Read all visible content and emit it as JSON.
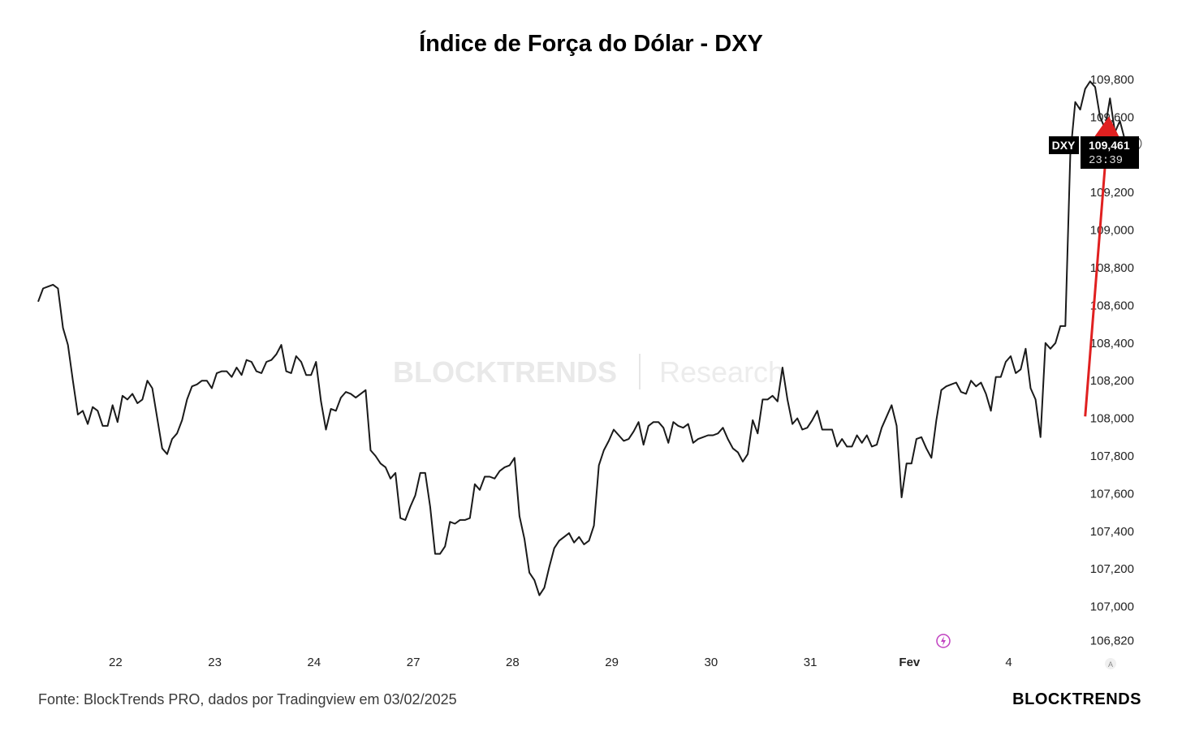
{
  "chart_data": {
    "type": "line",
    "title": "Índice de Força do Dólar - DXY",
    "symbol": "DXY",
    "last_price": "109,461",
    "countdown": "23:39",
    "watermark": {
      "brand": "BLOCKTRENDS",
      "suffix": "Research"
    },
    "y_ticks": [
      "109,800",
      "109,600",
      "109,200",
      "109,000",
      "108,800",
      "108,600",
      "108,400",
      "108,200",
      "108,000",
      "107,800",
      "107,600",
      "107,400",
      "107,200",
      "107,000",
      "106,820"
    ],
    "y_range": [
      106.82,
      109.8
    ],
    "x_ticks": [
      "22",
      "23",
      "24",
      "27",
      "28",
      "29",
      "30",
      "31",
      "Fev",
      "4"
    ],
    "x_index_range": [
      21.35,
      33.1
    ],
    "line_color": "#1a1a1a",
    "arrow_color": "#e02020",
    "series": [
      {
        "values": [
          [
            21.35,
            108.62
          ],
          [
            21.4,
            108.69
          ],
          [
            21.45,
            108.7
          ],
          [
            21.5,
            108.71
          ],
          [
            21.55,
            108.69
          ],
          [
            21.6,
            108.48
          ],
          [
            21.65,
            108.39
          ],
          [
            21.7,
            108.2
          ],
          [
            21.75,
            108.02
          ],
          [
            21.8,
            108.04
          ],
          [
            21.85,
            107.97
          ],
          [
            21.9,
            108.06
          ],
          [
            21.95,
            108.04
          ],
          [
            22.0,
            107.96
          ],
          [
            22.05,
            107.96
          ],
          [
            22.1,
            108.07
          ],
          [
            22.15,
            107.98
          ],
          [
            22.2,
            108.12
          ],
          [
            22.25,
            108.1
          ],
          [
            22.3,
            108.13
          ],
          [
            22.35,
            108.08
          ],
          [
            22.4,
            108.1
          ],
          [
            22.45,
            108.2
          ],
          [
            22.5,
            108.16
          ],
          [
            22.55,
            108.0
          ],
          [
            22.6,
            107.84
          ],
          [
            22.65,
            107.81
          ],
          [
            22.7,
            107.89
          ],
          [
            22.75,
            107.92
          ],
          [
            22.8,
            107.99
          ],
          [
            22.85,
            108.1
          ],
          [
            22.9,
            108.17
          ],
          [
            22.95,
            108.18
          ],
          [
            23.0,
            108.2
          ],
          [
            23.05,
            108.2
          ],
          [
            23.1,
            108.16
          ],
          [
            23.15,
            108.24
          ],
          [
            23.2,
            108.25
          ],
          [
            23.25,
            108.25
          ],
          [
            23.3,
            108.22
          ],
          [
            23.35,
            108.27
          ],
          [
            23.4,
            108.23
          ],
          [
            23.45,
            108.31
          ],
          [
            23.5,
            108.3
          ],
          [
            23.55,
            108.25
          ],
          [
            23.6,
            108.24
          ],
          [
            23.65,
            108.3
          ],
          [
            23.7,
            108.31
          ],
          [
            23.75,
            108.34
          ],
          [
            23.8,
            108.39
          ],
          [
            23.85,
            108.25
          ],
          [
            23.9,
            108.24
          ],
          [
            23.95,
            108.33
          ],
          [
            24.0,
            108.3
          ],
          [
            24.05,
            108.23
          ],
          [
            24.1,
            108.23
          ],
          [
            24.15,
            108.3
          ],
          [
            24.2,
            108.09
          ],
          [
            24.25,
            107.94
          ],
          [
            24.3,
            108.05
          ],
          [
            24.35,
            108.04
          ],
          [
            24.4,
            108.11
          ],
          [
            24.45,
            108.14
          ],
          [
            24.5,
            108.13
          ],
          [
            24.55,
            108.11
          ],
          [
            24.6,
            108.13
          ],
          [
            24.65,
            108.15
          ],
          [
            24.7,
            107.83
          ],
          [
            24.75,
            107.8
          ],
          [
            24.8,
            107.76
          ],
          [
            24.85,
            107.74
          ],
          [
            24.9,
            107.68
          ],
          [
            24.95,
            107.71
          ],
          [
            25.0,
            107.47
          ],
          [
            25.05,
            107.46
          ],
          [
            25.1,
            107.53
          ],
          [
            25.15,
            107.59
          ],
          [
            25.2,
            107.71
          ],
          [
            25.25,
            107.71
          ],
          [
            25.3,
            107.53
          ],
          [
            25.35,
            107.28
          ],
          [
            25.4,
            107.28
          ],
          [
            25.45,
            107.32
          ],
          [
            25.5,
            107.45
          ],
          [
            25.55,
            107.44
          ],
          [
            25.6,
            107.46
          ],
          [
            25.65,
            107.46
          ],
          [
            25.7,
            107.47
          ],
          [
            25.75,
            107.65
          ],
          [
            25.8,
            107.62
          ],
          [
            25.85,
            107.69
          ],
          [
            25.9,
            107.69
          ],
          [
            25.95,
            107.68
          ],
          [
            26.0,
            107.72
          ],
          [
            26.05,
            107.74
          ],
          [
            26.1,
            107.75
          ],
          [
            26.15,
            107.79
          ],
          [
            26.2,
            107.48
          ],
          [
            26.25,
            107.36
          ],
          [
            26.3,
            107.18
          ],
          [
            26.35,
            107.14
          ],
          [
            26.4,
            107.06
          ],
          [
            26.45,
            107.1
          ],
          [
            26.5,
            107.21
          ],
          [
            26.55,
            107.31
          ],
          [
            26.6,
            107.35
          ],
          [
            26.65,
            107.37
          ],
          [
            26.7,
            107.39
          ],
          [
            26.75,
            107.34
          ],
          [
            26.8,
            107.37
          ],
          [
            26.85,
            107.33
          ],
          [
            26.9,
            107.35
          ],
          [
            26.95,
            107.43
          ],
          [
            27.0,
            107.75
          ],
          [
            27.05,
            107.83
          ],
          [
            27.1,
            107.88
          ],
          [
            27.15,
            107.94
          ],
          [
            27.2,
            107.91
          ],
          [
            27.25,
            107.88
          ],
          [
            27.3,
            107.89
          ],
          [
            27.35,
            107.93
          ],
          [
            27.4,
            107.98
          ],
          [
            27.45,
            107.86
          ],
          [
            27.5,
            107.96
          ],
          [
            27.55,
            107.98
          ],
          [
            27.6,
            107.98
          ],
          [
            27.65,
            107.95
          ],
          [
            27.7,
            107.87
          ],
          [
            27.75,
            107.98
          ],
          [
            27.8,
            107.96
          ],
          [
            27.85,
            107.95
          ],
          [
            27.9,
            107.97
          ],
          [
            27.95,
            107.87
          ],
          [
            28.0,
            107.89
          ],
          [
            28.05,
            107.9
          ],
          [
            28.1,
            107.91
          ],
          [
            28.15,
            107.91
          ],
          [
            28.2,
            107.92
          ],
          [
            28.25,
            107.95
          ],
          [
            28.3,
            107.89
          ],
          [
            28.35,
            107.84
          ],
          [
            28.4,
            107.82
          ],
          [
            28.45,
            107.77
          ],
          [
            28.5,
            107.81
          ],
          [
            28.55,
            107.99
          ],
          [
            28.6,
            107.92
          ],
          [
            28.65,
            108.1
          ],
          [
            28.7,
            108.1
          ],
          [
            28.75,
            108.12
          ],
          [
            28.8,
            108.09
          ],
          [
            28.85,
            108.27
          ],
          [
            28.9,
            108.1
          ],
          [
            28.95,
            107.97
          ],
          [
            29.0,
            108.0
          ],
          [
            29.05,
            107.94
          ],
          [
            29.1,
            107.95
          ],
          [
            29.15,
            107.99
          ],
          [
            29.2,
            108.04
          ],
          [
            29.25,
            107.94
          ],
          [
            29.3,
            107.94
          ],
          [
            29.35,
            107.94
          ],
          [
            29.4,
            107.85
          ],
          [
            29.45,
            107.89
          ],
          [
            29.5,
            107.85
          ],
          [
            29.55,
            107.85
          ],
          [
            29.6,
            107.91
          ],
          [
            29.65,
            107.87
          ],
          [
            29.7,
            107.91
          ],
          [
            29.75,
            107.85
          ],
          [
            29.8,
            107.86
          ],
          [
            29.85,
            107.95
          ],
          [
            29.9,
            108.01
          ],
          [
            29.95,
            108.07
          ],
          [
            30.0,
            107.96
          ],
          [
            30.05,
            107.58
          ],
          [
            30.1,
            107.76
          ],
          [
            30.15,
            107.76
          ],
          [
            30.2,
            107.89
          ],
          [
            30.25,
            107.9
          ],
          [
            30.3,
            107.84
          ],
          [
            30.35,
            107.79
          ],
          [
            30.4,
            107.99
          ],
          [
            30.45,
            108.15
          ],
          [
            30.5,
            108.17
          ],
          [
            30.55,
            108.18
          ],
          [
            30.6,
            108.19
          ],
          [
            30.65,
            108.14
          ],
          [
            30.7,
            108.13
          ],
          [
            30.75,
            108.2
          ],
          [
            30.8,
            108.17
          ],
          [
            30.85,
            108.19
          ],
          [
            30.9,
            108.13
          ],
          [
            30.95,
            108.04
          ],
          [
            31.0,
            108.22
          ],
          [
            31.05,
            108.22
          ],
          [
            31.1,
            108.3
          ],
          [
            31.15,
            108.33
          ],
          [
            31.2,
            108.24
          ],
          [
            31.25,
            108.26
          ],
          [
            31.3,
            108.37
          ],
          [
            31.35,
            108.16
          ],
          [
            31.4,
            108.1
          ],
          [
            31.45,
            107.9
          ],
          [
            31.5,
            108.4
          ],
          [
            31.55,
            108.37
          ],
          [
            31.6,
            108.4
          ],
          [
            31.65,
            108.49
          ],
          [
            31.7,
            108.49
          ],
          [
            31.75,
            109.4
          ],
          [
            31.8,
            109.68
          ],
          [
            31.85,
            109.64
          ],
          [
            31.9,
            109.75
          ],
          [
            31.95,
            109.79
          ],
          [
            32.0,
            109.76
          ],
          [
            32.05,
            109.6
          ],
          [
            32.1,
            109.54
          ],
          [
            32.15,
            109.7
          ],
          [
            32.2,
            109.52
          ],
          [
            32.25,
            109.58
          ],
          [
            32.3,
            109.48
          ],
          [
            32.35,
            109.48
          ],
          [
            32.4,
            109.46
          ]
        ]
      }
    ]
  },
  "annotation": {
    "arrow": {
      "from": [
        31.9,
        108.01
      ],
      "to": [
        32.13,
        109.54
      ]
    }
  },
  "footer": {
    "source": "Fonte: BlockTrends PRO, dados por Tradingview em 03/02/2025",
    "brand": "BLOCKTRENDS"
  }
}
